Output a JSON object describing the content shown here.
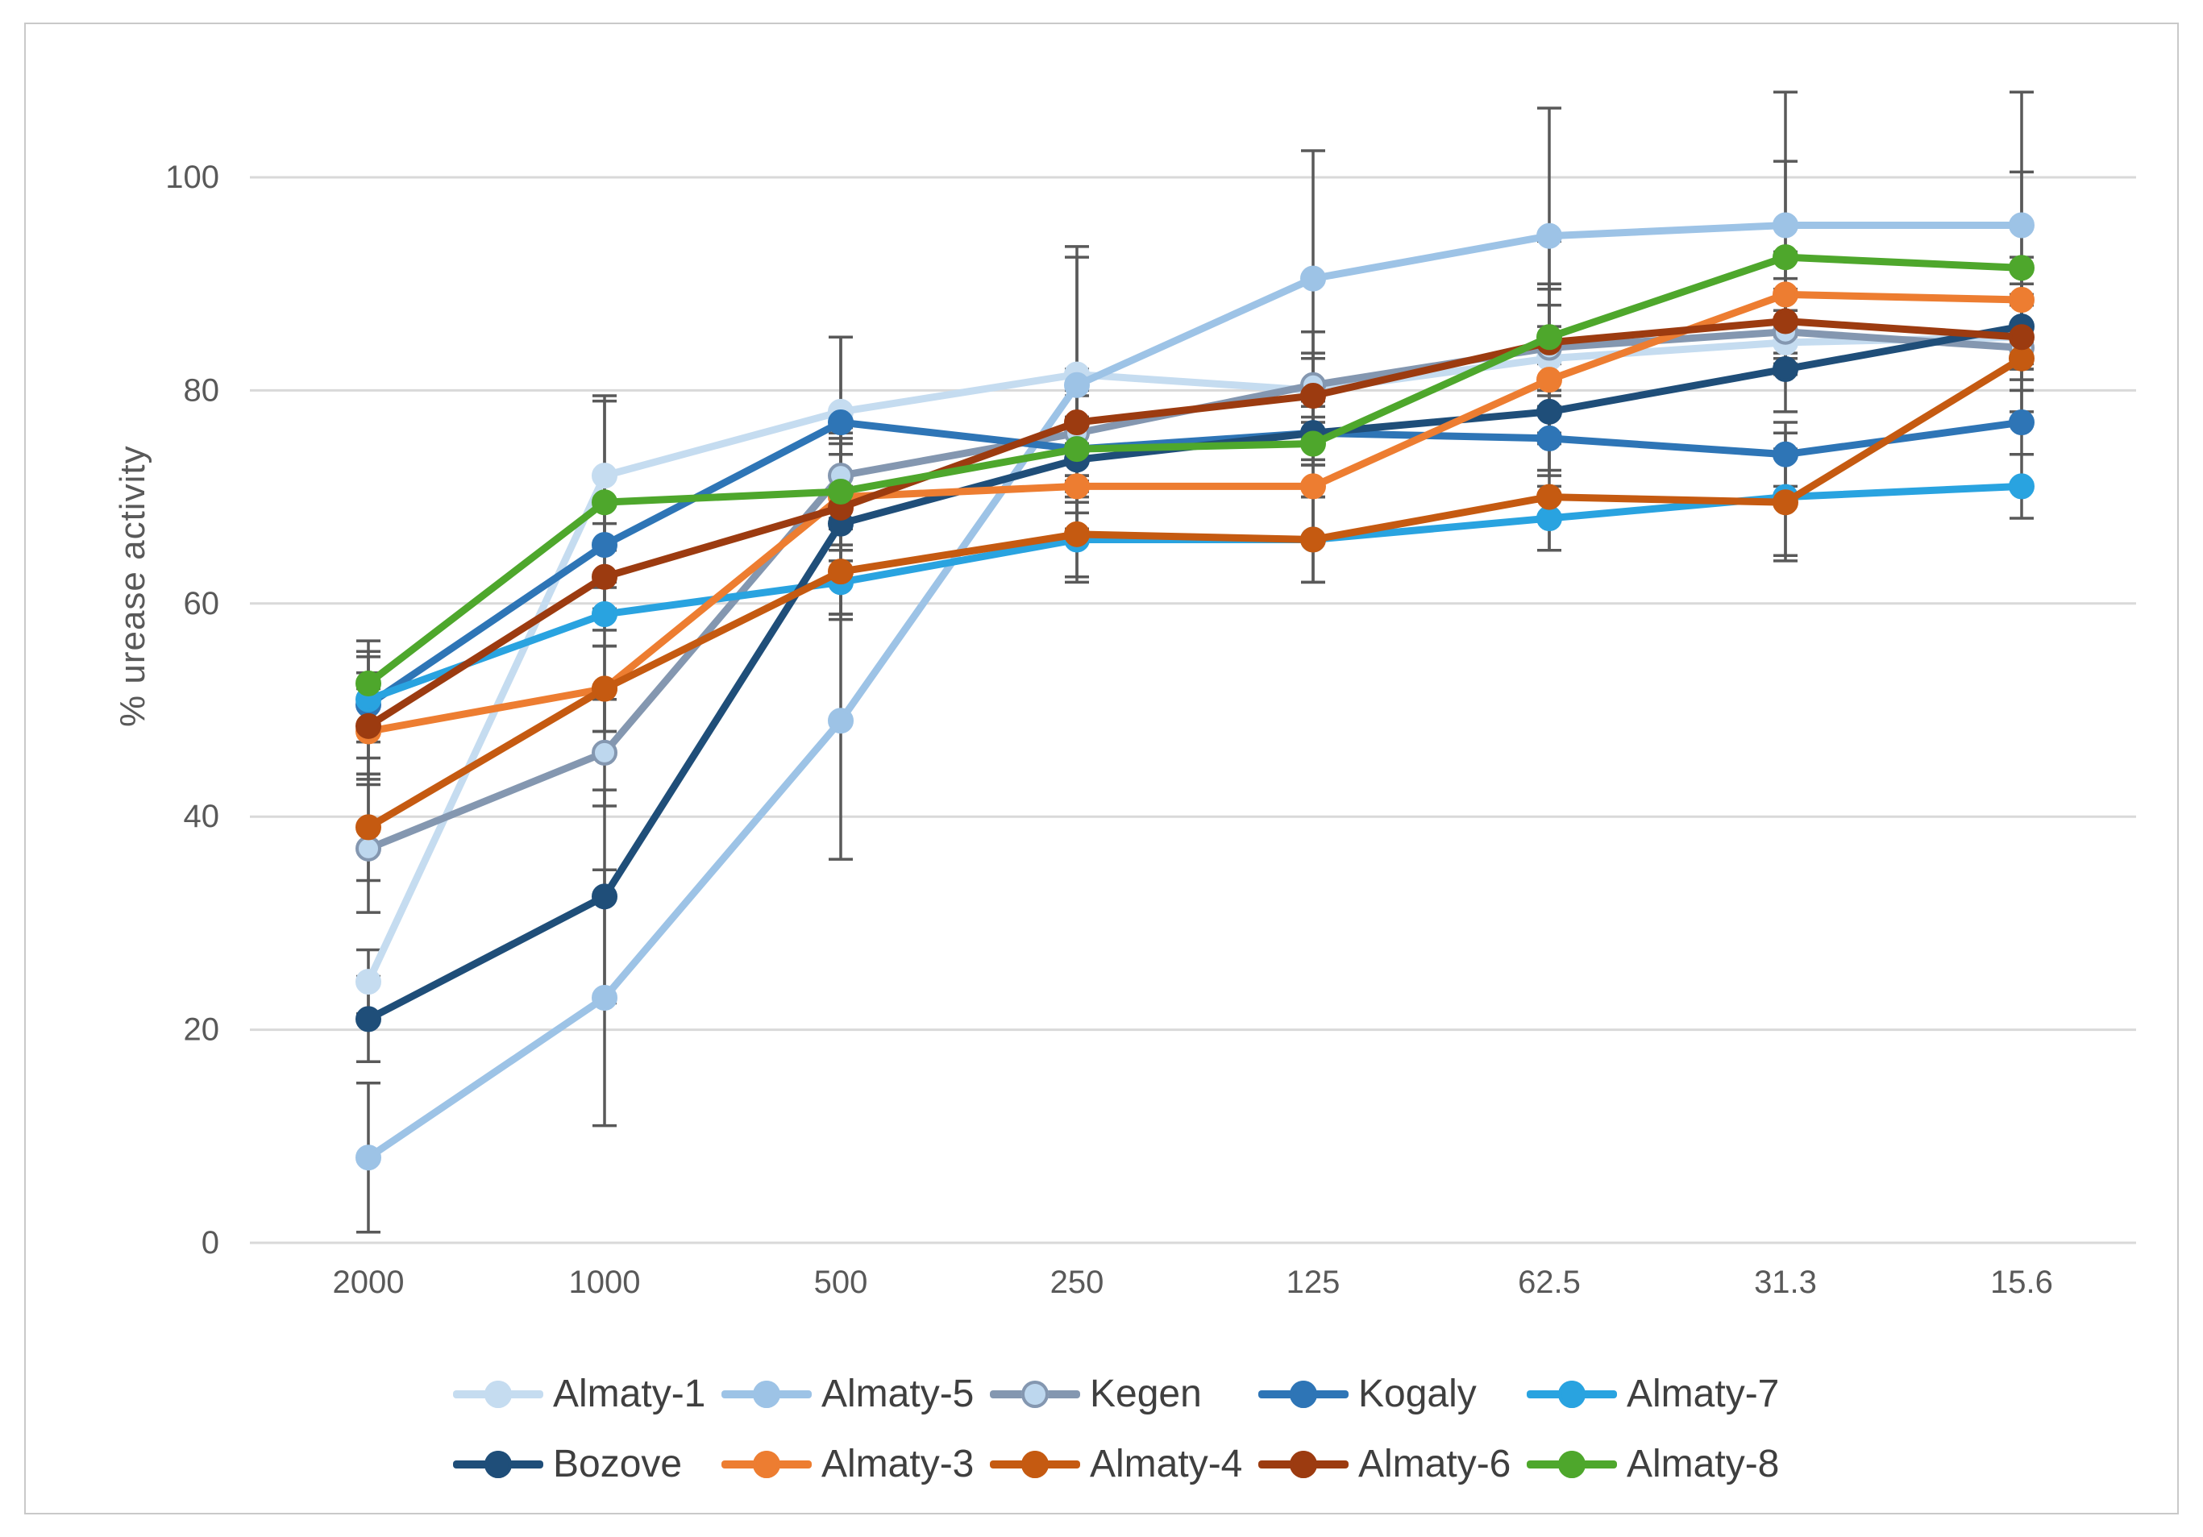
{
  "chart_data": {
    "type": "line",
    "title": "",
    "xlabel": "",
    "ylabel": "% urease activity",
    "x_categories": [
      "2000",
      "1000",
      "500",
      "250",
      "125",
      "62.5",
      "31.3",
      "15.6"
    ],
    "yticks": [
      0,
      20,
      40,
      60,
      80,
      100
    ],
    "ylim": [
      0,
      110
    ],
    "grid": true,
    "legend_position": "bottom",
    "error_bar_color": "#595959",
    "gridline_color": "#d9d9d9",
    "tick_label_color": "#595959",
    "legend_text_color": "#3f3f3f",
    "legend_rows": [
      [
        "Almaty-1",
        "Almaty-5",
        "Kegen",
        "Kogaly",
        "Almaty-7"
      ],
      [
        "Bozove",
        "Almaty-3",
        "Almaty-4",
        "Almaty-6",
        "Almaty-8"
      ]
    ],
    "series": [
      {
        "name": "Almaty-1",
        "color": "#c5dcf0",
        "marker_fill": "#c5dcf0",
        "values": [
          24.5,
          72,
          78,
          81.5,
          80,
          83,
          84.5,
          85
        ],
        "errors": [
          3,
          7,
          7,
          12,
          3,
          3,
          3,
          3
        ]
      },
      {
        "name": "Almaty-5",
        "color": "#9dc3e6",
        "marker_fill": "#9dc3e6",
        "values": [
          8,
          23,
          49,
          80.5,
          90.5,
          94.5,
          95.5,
          95.5
        ],
        "errors": [
          7,
          12,
          13,
          12,
          12,
          12,
          12.5,
          12.5
        ]
      },
      {
        "name": "Kegen",
        "color": "#8497b0",
        "marker_fill": "#bdd7ee",
        "values": [
          37,
          46,
          72,
          76,
          80.5,
          84,
          85.5,
          84
        ],
        "errors": [
          6,
          5,
          4,
          4,
          3,
          4,
          4,
          4
        ]
      },
      {
        "name": "Kogaly",
        "color": "#2e75b6",
        "marker_fill": "#2e75b6",
        "values": [
          50.5,
          65.5,
          77,
          74.5,
          76,
          75.5,
          74,
          77
        ],
        "errors": [
          5,
          4,
          8,
          3,
          3,
          3,
          3,
          3
        ]
      },
      {
        "name": "Almaty-7",
        "color": "#29a3e0",
        "marker_fill": "#29a3e0",
        "values": [
          51,
          59,
          62,
          66,
          66,
          68,
          70,
          71
        ],
        "errors": [
          4,
          3,
          3,
          4,
          4,
          3,
          6,
          3
        ]
      },
      {
        "name": "Bozove",
        "color": "#1f4e79",
        "marker_fill": "#1f4e79",
        "values": [
          21,
          32.5,
          67.5,
          73.5,
          76,
          78,
          82,
          86
        ],
        "errors": [
          4,
          10,
          9,
          4,
          3,
          3,
          4,
          4
        ]
      },
      {
        "name": "Almaty-3",
        "color": "#ed7d31",
        "marker_fill": "#ed7d31",
        "values": [
          48,
          52,
          70,
          71,
          71,
          81,
          89,
          88.5
        ],
        "errors": [
          4,
          4,
          5,
          4,
          5,
          9,
          4,
          4
        ]
      },
      {
        "name": "Almaty-4",
        "color": "#c55a11",
        "marker_fill": "#c55a11",
        "values": [
          39,
          52,
          63,
          66.5,
          66,
          70,
          69.5,
          83
        ],
        "errors": [
          5,
          4,
          4,
          4,
          4,
          5,
          5,
          5
        ]
      },
      {
        "name": "Almaty-6",
        "color": "#9c3b10",
        "marker_fill": "#9c3b10",
        "values": [
          48.5,
          62.5,
          69,
          77,
          79.5,
          84.5,
          86.5,
          85
        ],
        "errors": [
          5,
          5,
          5,
          5,
          6,
          5,
          4,
          4
        ]
      },
      {
        "name": "Almaty-8",
        "color": "#4ea72c",
        "marker_fill": "#4ea72c",
        "values": [
          52.5,
          69.5,
          70.5,
          74.5,
          75,
          85,
          92.5,
          91.5
        ],
        "errors": [
          4,
          10,
          5,
          5,
          5,
          9,
          9,
          9
        ]
      }
    ]
  }
}
